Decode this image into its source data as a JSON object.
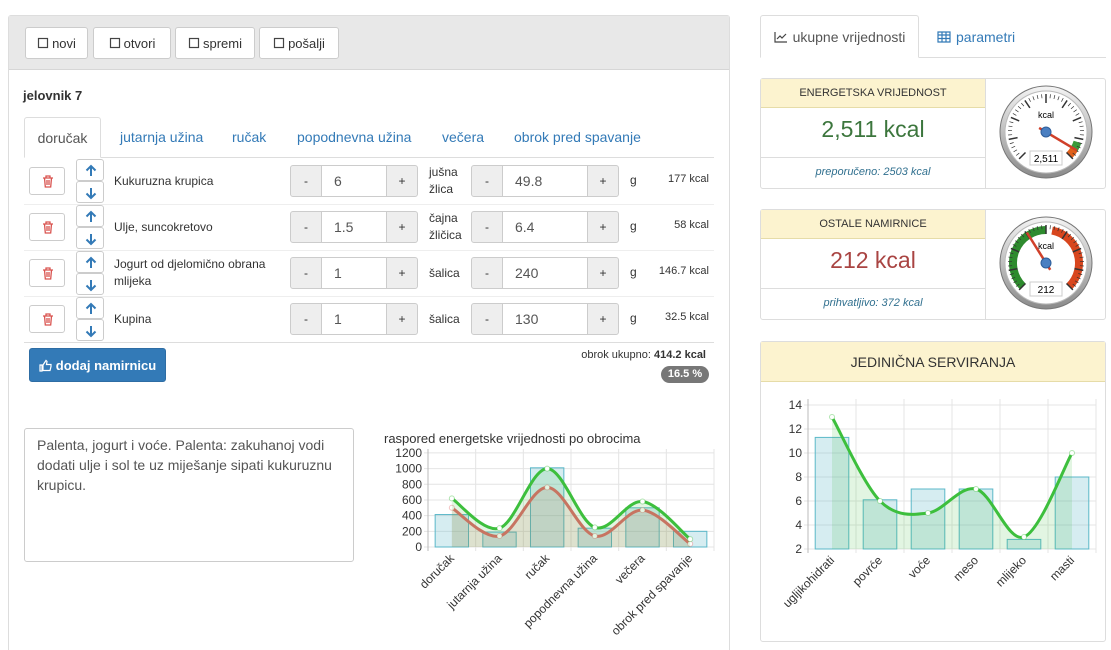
{
  "toolbar": [
    "novi",
    "otvori",
    "spremi",
    "pošalji"
  ],
  "menu_title": "jelovnik 7",
  "meal_tabs": [
    "doručak",
    "jutarnja užina",
    "ručak",
    "popodnevna užina",
    "večera",
    "obrok pred spavanje"
  ],
  "active_tab": 0,
  "ingredients": [
    {
      "name": "Kukuruzna krupica",
      "amount": 6,
      "unit": "jušna žlica",
      "grams": 49.8,
      "gram_unit": "g",
      "energy": "177 kcal"
    },
    {
      "name": "Ulje, suncokretovo",
      "amount": 1.5,
      "unit": "čajna žličica",
      "grams": 6.4,
      "gram_unit": "g",
      "energy": "58 kcal"
    },
    {
      "name": "Jogurt od djelomično obrana mlijeka",
      "amount": 1,
      "unit": "šalica",
      "grams": 240,
      "gram_unit": "g",
      "energy": "146.7 kcal"
    },
    {
      "name": "Kupina",
      "amount": 1,
      "unit": "šalica",
      "grams": 130,
      "gram_unit": "g",
      "energy": "32.5 kcal"
    }
  ],
  "minus": "-",
  "plus": "+",
  "add_button": "dodaj namirnicu",
  "meal_total_label": "obrok ukupno:",
  "meal_total": "414.2 kcal",
  "meal_percent": "16.5 %",
  "note": "Palenta, jogurt i voće. Palenta: zakuhanoj vodi dodati ulje i sol te uz miješanje sipati kukuruznu krupicu.",
  "side_tabs": [
    "ukupne vrijednosti",
    "parametri"
  ],
  "cards": [
    {
      "title": "ENERGETSKA VRIJEDNOST",
      "value": "2,511 kcal",
      "value_color": "#3c763d",
      "note": "preporučeno: 2503 kcal",
      "gauge": {
        "label": "kcal",
        "value": 2511,
        "value_label": "2,511",
        "min": 0,
        "max": 2650,
        "bands": [
          {
            "from": 2380,
            "to": 2520,
            "color": "#3a9a3a"
          },
          {
            "from": 2520,
            "to": 2650,
            "color": "#e0601a"
          }
        ]
      }
    },
    {
      "title": "OSTALE NAMIRNICE",
      "value": "212 kcal",
      "value_color": "#a94442",
      "note": "prihvatljivo: 372 kcal",
      "gauge": {
        "label": "kcal",
        "value": 212,
        "min": 0,
        "max": 556,
        "bands": [
          {
            "from": 0,
            "to": 278,
            "color": "#2e8b2e"
          },
          {
            "from": 300,
            "to": 556,
            "color": "#d8461e"
          }
        ]
      }
    }
  ],
  "chart_data": [
    {
      "type": "bar_line",
      "title": "raspored energetske vrijednosti po obrocima",
      "categories": [
        "doručak",
        "jutarnja užina",
        "ručak",
        "popodnevna užina",
        "večera",
        "obrok pred spavanje"
      ],
      "series": [
        {
          "type": "bar",
          "color": "#5bb8c9",
          "values": [
            414,
            190,
            1010,
            240,
            500,
            200
          ]
        },
        {
          "type": "line",
          "color": "#e06868",
          "values": [
            500,
            140,
            760,
            140,
            470,
            40
          ]
        },
        {
          "type": "line",
          "color": "#3dbf3d",
          "values": [
            620,
            240,
            1000,
            250,
            580,
            100
          ]
        }
      ],
      "ylim": [
        0,
        1250
      ],
      "yticks": [
        0,
        200,
        400,
        600,
        800,
        1000,
        1200
      ],
      "grid": true
    },
    {
      "type": "bar_line",
      "title": "JEDINIČNA SERVIRANJA",
      "categories": [
        "ugljikohidrati",
        "povrće",
        "voće",
        "meso",
        "mlijeko",
        "masti"
      ],
      "series": [
        {
          "type": "bar",
          "color": "#5bb8c9",
          "values": [
            11.3,
            6.1,
            7,
            7,
            2.8,
            8
          ]
        },
        {
          "type": "line",
          "color": "#3dbf3d",
          "values": [
            13,
            6,
            5,
            7,
            3,
            10
          ]
        }
      ],
      "ylim": [
        2,
        14.5
      ],
      "yticks": [
        2,
        4,
        6,
        8,
        10,
        12,
        14
      ],
      "grid": true
    }
  ]
}
